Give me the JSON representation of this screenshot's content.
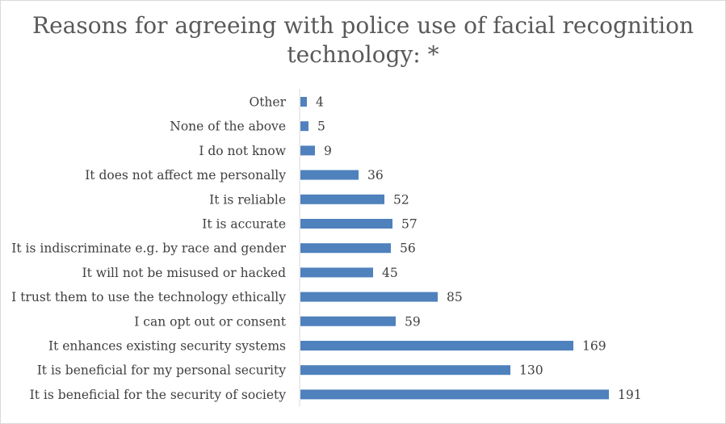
{
  "chart_data": {
    "type": "bar",
    "orientation": "horizontal",
    "title_lines": [
      "Reasons for agreeing with police use of facial recognition",
      "technology: *"
    ],
    "categories": [
      "Other",
      "None of the above",
      "I do not know",
      "It does not affect me personally",
      "It is reliable",
      "It is accurate",
      "It is indiscriminate e.g. by race and gender",
      "It will not be misused or hacked",
      "I trust them to use the technology ethically",
      "I can opt out or consent",
      "It enhances existing security systems",
      "It is beneficial for my personal security",
      "It is beneficial for the security of society"
    ],
    "values": [
      4,
      5,
      9,
      36,
      52,
      57,
      56,
      45,
      85,
      59,
      169,
      130,
      191
    ],
    "data_labels": true,
    "bar_color": "#4f81bd",
    "grid": false,
    "legend": "none"
  }
}
